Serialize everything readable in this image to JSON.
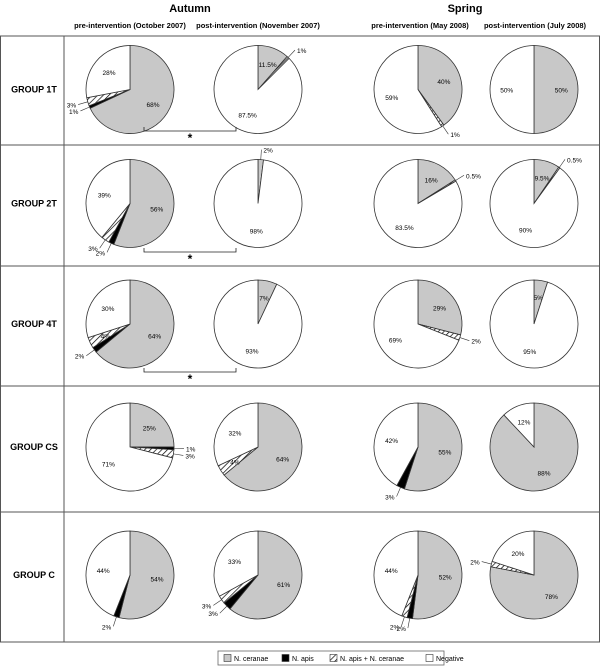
{
  "header": {
    "season_left": "Autumn",
    "season_right": "Spring",
    "columns": [
      "pre-intervention (October 2007)",
      "post-intervention (November 2007)",
      "pre-intervention (May 2008)",
      "post-intervention (July 2008)"
    ]
  },
  "legend": [
    {
      "label": "N. ceranae",
      "fill": "gray"
    },
    {
      "label": "N. apis",
      "fill": "black"
    },
    {
      "label": "N. apis + N. ceranae",
      "fill": "hatch"
    },
    {
      "label": "Negative",
      "fill": "white"
    }
  ],
  "significance_marker": "*",
  "colors": {
    "ceranae": "#c8c8c8",
    "apis": "#000000",
    "mixed": "hatch",
    "negative": "#ffffff"
  },
  "chart_data": {
    "type": "pie",
    "series_order": [
      "N. ceranae",
      "N. apis",
      "N. apis + N. ceranae",
      "Negative"
    ],
    "groups": [
      {
        "name": "GROUP 1T",
        "significant_autumn": true,
        "pies": [
          {
            "values": [
              68,
              1,
              3,
              28
            ],
            "labels": [
              "68%",
              "1%",
              "3%",
              "28%"
            ]
          },
          {
            "values": [
              11.5,
              0,
              1,
              87.5
            ],
            "labels": [
              "11.5%",
              "",
              "1%",
              "87.5%"
            ]
          },
          {
            "values": [
              40,
              0,
              1,
              59
            ],
            "labels": [
              "40%",
              "",
              "1%",
              "59%"
            ]
          },
          {
            "values": [
              50,
              0,
              0,
              50
            ],
            "labels": [
              "50%",
              "",
              "",
              "50%"
            ]
          }
        ]
      },
      {
        "name": "GROUP 2T",
        "significant_autumn": true,
        "pies": [
          {
            "values": [
              56,
              2,
              3,
              39
            ],
            "labels": [
              "56%",
              "2%",
              "3%",
              "39%"
            ]
          },
          {
            "values": [
              2,
              0,
              0,
              98
            ],
            "labels": [
              "2%",
              "",
              "",
              "98%"
            ]
          },
          {
            "values": [
              16,
              0,
              0.5,
              83.5
            ],
            "labels": [
              "16%",
              "",
              "0.5%",
              "83.5%"
            ]
          },
          {
            "values": [
              9.5,
              0,
              0.5,
              90
            ],
            "labels": [
              "9.5%",
              "",
              "0.5%",
              "90%"
            ]
          }
        ]
      },
      {
        "name": "GROUP 4T",
        "significant_autumn": true,
        "pies": [
          {
            "values": [
              64,
              2,
              4,
              30
            ],
            "labels": [
              "64%",
              "2%",
              "4%",
              "30%"
            ]
          },
          {
            "values": [
              7,
              0,
              0,
              93
            ],
            "labels": [
              "7%",
              "",
              "",
              "93%"
            ]
          },
          {
            "values": [
              29,
              0,
              2,
              69
            ],
            "labels": [
              "29%",
              "",
              "2%",
              "69%"
            ]
          },
          {
            "values": [
              5,
              0,
              0,
              95
            ],
            "labels": [
              "5%",
              "",
              "",
              "95%"
            ]
          }
        ]
      },
      {
        "name": "GROUP CS",
        "significant_autumn": false,
        "pies": [
          {
            "values": [
              25,
              1,
              3,
              71
            ],
            "labels": [
              "25%",
              "1%",
              "3%",
              "71%"
            ]
          },
          {
            "values": [
              64,
              0,
              4,
              32
            ],
            "labels": [
              "64%",
              "",
              "4%",
              "32%"
            ]
          },
          {
            "values": [
              55,
              3,
              0,
              42
            ],
            "labels": [
              "55%",
              "3%",
              "",
              "42%"
            ]
          },
          {
            "values": [
              88,
              0,
              0,
              12
            ],
            "labels": [
              "88%",
              "",
              "",
              "12%"
            ]
          }
        ]
      },
      {
        "name": "GROUP C",
        "significant_autumn": false,
        "pies": [
          {
            "values": [
              54,
              2,
              0,
              44
            ],
            "labels": [
              "54%",
              "2%",
              "",
              "44%"
            ]
          },
          {
            "values": [
              61,
              3,
              3,
              33
            ],
            "labels": [
              "61%",
              "3%",
              "3%",
              "33%"
            ]
          },
          {
            "values": [
              52,
              2,
              2,
              44
            ],
            "labels": [
              "52%",
              "2%",
              "2%",
              "44%"
            ]
          },
          {
            "values": [
              78,
              0,
              2,
              20
            ],
            "labels": [
              "78%",
              "",
              "2%",
              "20%"
            ]
          }
        ]
      }
    ]
  }
}
